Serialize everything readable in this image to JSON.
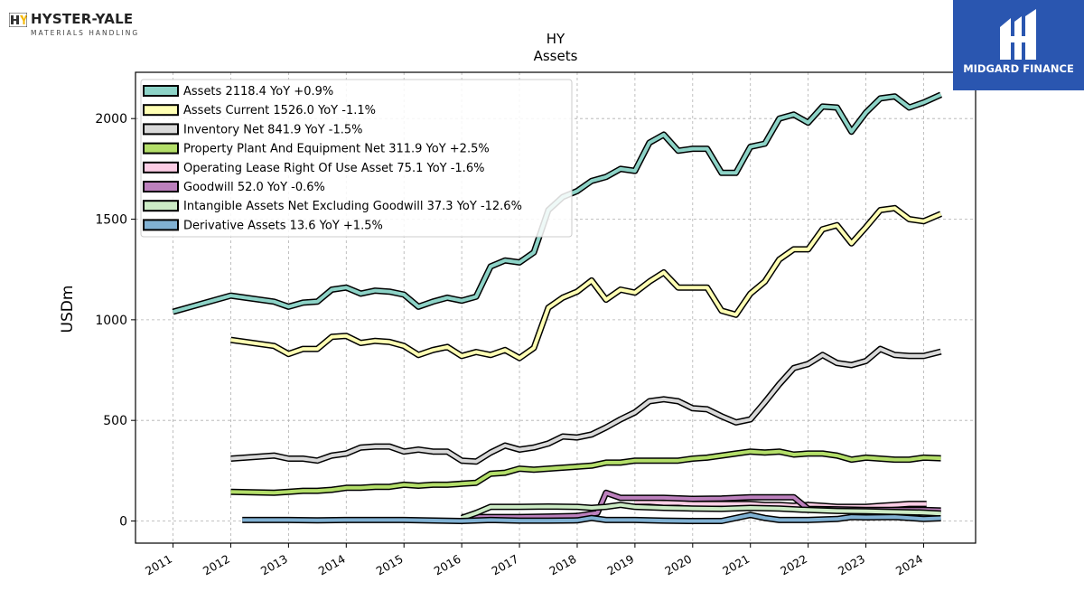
{
  "branding": {
    "company_name": "HYSTER-YALE",
    "company_subtitle": "MATERIALS HANDLING",
    "partner_name": "MIDGARD FINANCE"
  },
  "colors": {
    "background": "#ffffff",
    "grid": "#b0b0b0",
    "partner_bg": "#2a56b0"
  },
  "chart_data": {
    "type": "line",
    "title": "HY",
    "subtitle": "Assets",
    "ylabel": "USDm",
    "xlabel": "",
    "ylim": [
      -110,
      2230
    ],
    "xlim": [
      2010.35,
      2024.9
    ],
    "grid": true,
    "legend_position": "top-left",
    "x_ticks": [
      2011,
      2012,
      2013,
      2014,
      2015,
      2016,
      2017,
      2018,
      2019,
      2020,
      2021,
      2022,
      2023,
      2024
    ],
    "y_ticks": [
      0,
      500,
      1000,
      1500,
      2000
    ],
    "series": [
      {
        "name": "Assets",
        "legend": "Assets  2118.4 YoY +0.9%",
        "color": "#8dd3c7",
        "points": [
          [
            2011.0,
            1040
          ],
          [
            2012.0,
            1120
          ],
          [
            2012.75,
            1090
          ],
          [
            2013.0,
            1065
          ],
          [
            2013.25,
            1085
          ],
          [
            2013.5,
            1090
          ],
          [
            2013.75,
            1150
          ],
          [
            2014.0,
            1160
          ],
          [
            2014.25,
            1130
          ],
          [
            2014.5,
            1145
          ],
          [
            2014.75,
            1140
          ],
          [
            2015.0,
            1125
          ],
          [
            2015.25,
            1065
          ],
          [
            2015.5,
            1090
          ],
          [
            2015.75,
            1110
          ],
          [
            2016.0,
            1095
          ],
          [
            2016.25,
            1115
          ],
          [
            2016.5,
            1265
          ],
          [
            2016.75,
            1295
          ],
          [
            2017.0,
            1285
          ],
          [
            2017.25,
            1335
          ],
          [
            2017.5,
            1545
          ],
          [
            2017.75,
            1610
          ],
          [
            2018.0,
            1640
          ],
          [
            2018.25,
            1690
          ],
          [
            2018.5,
            1710
          ],
          [
            2018.75,
            1750
          ],
          [
            2019.0,
            1740
          ],
          [
            2019.25,
            1880
          ],
          [
            2019.5,
            1920
          ],
          [
            2019.75,
            1840
          ],
          [
            2020.0,
            1850
          ],
          [
            2020.25,
            1850
          ],
          [
            2020.5,
            1730
          ],
          [
            2020.75,
            1730
          ],
          [
            2021.0,
            1860
          ],
          [
            2021.25,
            1875
          ],
          [
            2021.5,
            2000
          ],
          [
            2021.75,
            2020
          ],
          [
            2022.0,
            1980
          ],
          [
            2022.25,
            2060
          ],
          [
            2022.5,
            2055
          ],
          [
            2022.75,
            1935
          ],
          [
            2023.0,
            2030
          ],
          [
            2023.25,
            2100
          ],
          [
            2023.5,
            2110
          ],
          [
            2023.75,
            2055
          ],
          [
            2024.0,
            2080
          ],
          [
            2024.3,
            2118.4
          ]
        ]
      },
      {
        "name": "Assets Current",
        "legend": "Assets Current  1526.0 YoY -1.1%",
        "color": "#ffffb3",
        "points": [
          [
            2012.0,
            900
          ],
          [
            2012.75,
            870
          ],
          [
            2013.0,
            830
          ],
          [
            2013.25,
            855
          ],
          [
            2013.5,
            855
          ],
          [
            2013.75,
            915
          ],
          [
            2014.0,
            920
          ],
          [
            2014.25,
            885
          ],
          [
            2014.5,
            895
          ],
          [
            2014.75,
            890
          ],
          [
            2015.0,
            870
          ],
          [
            2015.25,
            825
          ],
          [
            2015.5,
            850
          ],
          [
            2015.75,
            865
          ],
          [
            2016.0,
            820
          ],
          [
            2016.25,
            840
          ],
          [
            2016.5,
            825
          ],
          [
            2016.75,
            850
          ],
          [
            2017.0,
            810
          ],
          [
            2017.25,
            860
          ],
          [
            2017.5,
            1060
          ],
          [
            2017.75,
            1110
          ],
          [
            2018.0,
            1140
          ],
          [
            2018.25,
            1195
          ],
          [
            2018.5,
            1100
          ],
          [
            2018.75,
            1150
          ],
          [
            2019.0,
            1135
          ],
          [
            2019.25,
            1190
          ],
          [
            2019.5,
            1235
          ],
          [
            2019.75,
            1160
          ],
          [
            2020.0,
            1160
          ],
          [
            2020.25,
            1160
          ],
          [
            2020.5,
            1045
          ],
          [
            2020.75,
            1025
          ],
          [
            2021.0,
            1130
          ],
          [
            2021.25,
            1190
          ],
          [
            2021.5,
            1300
          ],
          [
            2021.75,
            1350
          ],
          [
            2022.0,
            1350
          ],
          [
            2022.25,
            1450
          ],
          [
            2022.5,
            1470
          ],
          [
            2022.75,
            1380
          ],
          [
            2023.0,
            1460
          ],
          [
            2023.25,
            1545
          ],
          [
            2023.5,
            1555
          ],
          [
            2023.75,
            1500
          ],
          [
            2024.0,
            1490
          ],
          [
            2024.3,
            1526.0
          ]
        ]
      },
      {
        "name": "Inventory Net",
        "legend": "Inventory Net  841.9 YoY -1.5%",
        "color": "#d9d9d9",
        "points": [
          [
            2012.0,
            310
          ],
          [
            2012.75,
            325
          ],
          [
            2013.0,
            310
          ],
          [
            2013.25,
            310
          ],
          [
            2013.5,
            300
          ],
          [
            2013.75,
            325
          ],
          [
            2014.0,
            335
          ],
          [
            2014.25,
            365
          ],
          [
            2014.5,
            370
          ],
          [
            2014.75,
            370
          ],
          [
            2015.0,
            345
          ],
          [
            2015.25,
            355
          ],
          [
            2015.5,
            345
          ],
          [
            2015.75,
            345
          ],
          [
            2016.0,
            300
          ],
          [
            2016.25,
            295
          ],
          [
            2016.5,
            340
          ],
          [
            2016.75,
            375
          ],
          [
            2017.0,
            355
          ],
          [
            2017.25,
            365
          ],
          [
            2017.5,
            385
          ],
          [
            2017.75,
            420
          ],
          [
            2018.0,
            415
          ],
          [
            2018.25,
            430
          ],
          [
            2018.5,
            465
          ],
          [
            2018.75,
            505
          ],
          [
            2019.0,
            540
          ],
          [
            2019.25,
            595
          ],
          [
            2019.5,
            605
          ],
          [
            2019.75,
            595
          ],
          [
            2020.0,
            560
          ],
          [
            2020.25,
            555
          ],
          [
            2020.5,
            520
          ],
          [
            2020.75,
            490
          ],
          [
            2021.0,
            505
          ],
          [
            2021.25,
            590
          ],
          [
            2021.5,
            680
          ],
          [
            2021.75,
            760
          ],
          [
            2022.0,
            780
          ],
          [
            2022.25,
            825
          ],
          [
            2022.5,
            785
          ],
          [
            2022.75,
            775
          ],
          [
            2023.0,
            795
          ],
          [
            2023.25,
            855
          ],
          [
            2023.5,
            825
          ],
          [
            2023.75,
            820
          ],
          [
            2024.0,
            820
          ],
          [
            2024.3,
            841.9
          ]
        ]
      },
      {
        "name": "Property Plant And Equipment Net",
        "legend": "Property Plant And Equipment Net  311.9 YoY +2.5%",
        "color": "#b3de69",
        "points": [
          [
            2012.0,
            145
          ],
          [
            2012.75,
            140
          ],
          [
            2013.0,
            145
          ],
          [
            2013.25,
            150
          ],
          [
            2013.5,
            150
          ],
          [
            2013.75,
            155
          ],
          [
            2014.0,
            165
          ],
          [
            2014.25,
            165
          ],
          [
            2014.5,
            170
          ],
          [
            2014.75,
            170
          ],
          [
            2015.0,
            180
          ],
          [
            2015.25,
            175
          ],
          [
            2015.5,
            180
          ],
          [
            2015.75,
            180
          ],
          [
            2016.0,
            185
          ],
          [
            2016.25,
            190
          ],
          [
            2016.5,
            235
          ],
          [
            2016.75,
            240
          ],
          [
            2017.0,
            260
          ],
          [
            2017.25,
            255
          ],
          [
            2017.5,
            260
          ],
          [
            2017.75,
            265
          ],
          [
            2018.0,
            270
          ],
          [
            2018.25,
            275
          ],
          [
            2018.5,
            290
          ],
          [
            2018.75,
            290
          ],
          [
            2019.0,
            300
          ],
          [
            2019.25,
            300
          ],
          [
            2019.5,
            300
          ],
          [
            2019.75,
            300
          ],
          [
            2020.0,
            310
          ],
          [
            2020.25,
            315
          ],
          [
            2020.5,
            325
          ],
          [
            2020.75,
            335
          ],
          [
            2021.0,
            345
          ],
          [
            2021.25,
            340
          ],
          [
            2021.5,
            345
          ],
          [
            2021.75,
            330
          ],
          [
            2022.0,
            335
          ],
          [
            2022.25,
            335
          ],
          [
            2022.5,
            325
          ],
          [
            2022.75,
            305
          ],
          [
            2023.0,
            315
          ],
          [
            2023.25,
            310
          ],
          [
            2023.5,
            305
          ],
          [
            2023.75,
            305
          ],
          [
            2024.0,
            315
          ],
          [
            2024.3,
            311.9
          ]
        ]
      },
      {
        "name": "Operating Lease Right Of Use Asset",
        "legend": "Operating Lease Right Of Use Asset  75.1 YoY -1.6%",
        "color": "#fccde5",
        "points": [
          [
            2019.0,
            95
          ],
          [
            2019.25,
            95
          ],
          [
            2019.5,
            90
          ],
          [
            2019.75,
            90
          ],
          [
            2020.0,
            85
          ],
          [
            2020.25,
            85
          ],
          [
            2020.5,
            85
          ],
          [
            2020.75,
            85
          ],
          [
            2021.0,
            85
          ],
          [
            2021.25,
            80
          ],
          [
            2021.5,
            80
          ],
          [
            2021.75,
            75
          ],
          [
            2022.0,
            80
          ],
          [
            2022.25,
            75
          ],
          [
            2022.5,
            70
          ],
          [
            2022.75,
            70
          ],
          [
            2023.0,
            70
          ],
          [
            2023.25,
            75
          ],
          [
            2023.5,
            80
          ],
          [
            2023.75,
            85
          ],
          [
            2024.05,
            85
          ]
        ]
      },
      {
        "name": "Goodwill",
        "legend": "Goodwill  52.0 YoY -0.6%",
        "color": "#bc80bd",
        "points": [
          [
            2016.0,
            20
          ],
          [
            2016.5,
            20
          ],
          [
            2017.0,
            20
          ],
          [
            2017.5,
            22
          ],
          [
            2018.0,
            25
          ],
          [
            2018.35,
            40
          ],
          [
            2018.5,
            140
          ],
          [
            2018.75,
            115
          ],
          [
            2019.0,
            115
          ],
          [
            2019.5,
            115
          ],
          [
            2020.0,
            110
          ],
          [
            2020.5,
            112
          ],
          [
            2021.0,
            118
          ],
          [
            2021.5,
            118
          ],
          [
            2021.75,
            118
          ],
          [
            2022.0,
            60
          ],
          [
            2022.5,
            58
          ],
          [
            2023.0,
            55
          ],
          [
            2023.5,
            55
          ],
          [
            2024.0,
            55
          ],
          [
            2024.3,
            52.0
          ]
        ]
      },
      {
        "name": "Intangible Assets Net Excluding Goodwill",
        "legend": "Intangible Assets Net Excluding Goodwill  37.3 YoY -12.6%",
        "color": "#ccebc5",
        "points": [
          [
            2016.0,
            15
          ],
          [
            2016.25,
            40
          ],
          [
            2016.5,
            70
          ],
          [
            2017.0,
            70
          ],
          [
            2017.5,
            72
          ],
          [
            2018.0,
            70
          ],
          [
            2018.25,
            65
          ],
          [
            2018.5,
            70
          ],
          [
            2018.75,
            80
          ],
          [
            2019.0,
            70
          ],
          [
            2019.5,
            65
          ],
          [
            2020.0,
            62
          ],
          [
            2020.5,
            60
          ],
          [
            2021.0,
            65
          ],
          [
            2021.5,
            62
          ],
          [
            2022.0,
            55
          ],
          [
            2022.5,
            50
          ],
          [
            2023.0,
            48
          ],
          [
            2023.5,
            45
          ],
          [
            2024.0,
            42
          ],
          [
            2024.3,
            37.3
          ]
        ]
      },
      {
        "name": "Derivative Assets",
        "legend": "Derivative Assets  13.6 YoY +1.5%",
        "color": "#80b1d3",
        "points": [
          [
            2012.2,
            5
          ],
          [
            2013.0,
            5
          ],
          [
            2013.5,
            3
          ],
          [
            2014.0,
            5
          ],
          [
            2015.0,
            5
          ],
          [
            2016.0,
            0
          ],
          [
            2016.5,
            5
          ],
          [
            2017.0,
            2
          ],
          [
            2017.5,
            2
          ],
          [
            2018.0,
            3
          ],
          [
            2018.25,
            15
          ],
          [
            2018.5,
            5
          ],
          [
            2019.0,
            5
          ],
          [
            2019.5,
            2
          ],
          [
            2020.0,
            0
          ],
          [
            2020.5,
            0
          ],
          [
            2021.0,
            30
          ],
          [
            2021.25,
            15
          ],
          [
            2021.5,
            5
          ],
          [
            2022.0,
            5
          ],
          [
            2022.5,
            10
          ],
          [
            2022.75,
            20
          ],
          [
            2023.0,
            18
          ],
          [
            2023.5,
            20
          ],
          [
            2024.0,
            10
          ],
          [
            2024.3,
            13.6
          ]
        ]
      }
    ]
  }
}
